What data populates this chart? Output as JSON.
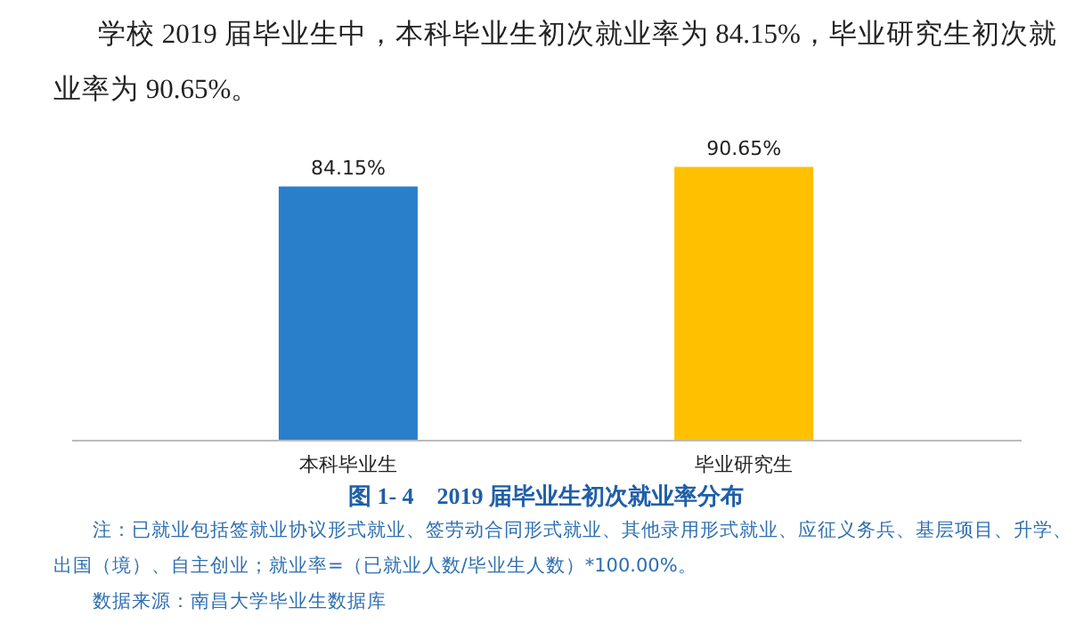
{
  "chart_data": {
    "type": "bar",
    "title": "图 1- 4　2019 届毕业生初次就业率分布",
    "categories": [
      "本科毕业生",
      "毕业研究生"
    ],
    "values": [
      84.15,
      90.65
    ],
    "colors": [
      "#2a7fca",
      "#ffc000"
    ],
    "value_labels": [
      "84.15%",
      "90.65%"
    ],
    "grid": false,
    "annotations": [
      "学校 2019 届毕业生中，本科毕业生初次就业率为 84.15%，毕业研究生初次就业率为 90.65%。",
      "注：已就业包括签就业协议形式就业、签劳动合同形式就业、其他录用形式就业、应征义务兵、基层项目、升学、出国（境）、自主创业；就业率=（已就业人数/毕业生人数）*100.00%。",
      "数据来源：南昌大学毕业生数据库"
    ]
  }
}
